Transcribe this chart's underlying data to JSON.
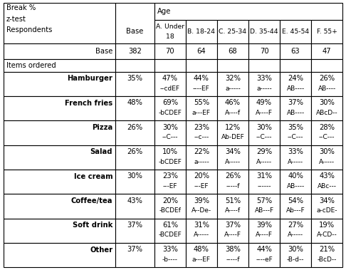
{
  "header_top_left": [
    "Break %",
    "z-test",
    "Respondents"
  ],
  "header_age_label": "Age",
  "col_headers": [
    "Base",
    "A. Under\n18",
    "B. 18-24",
    "C. 25-34",
    "D. 35-44",
    "E. 45-54",
    "F. 55+"
  ],
  "base_row_label": "Base",
  "base_row_vals": [
    "382",
    "70",
    "64",
    "68",
    "70",
    "63",
    "47"
  ],
  "section_label": "Items ordered",
  "rows": [
    {
      "label": "Hamburger",
      "values": [
        "35%",
        "47%",
        "44%",
        "32%",
        "33%",
        "24%",
        "26%"
      ],
      "ztest": [
        "",
        "--cdEF",
        "----EF",
        "a-----",
        "a-----",
        "AB----",
        "AB----"
      ]
    },
    {
      "label": "French fries",
      "values": [
        "48%",
        "69%",
        "55%",
        "46%",
        "49%",
        "37%",
        "30%"
      ],
      "ztest": [
        "",
        "-bCDEF",
        "a---EF",
        "A----f",
        "A----F",
        "AB----",
        "ABcD--"
      ]
    },
    {
      "label": "Pizza",
      "values": [
        "26%",
        "30%",
        "23%",
        "12%",
        "30%",
        "35%",
        "28%"
      ],
      "ztest": [
        "",
        "--C---",
        "--c---",
        "Ab-DEF",
        "--C---",
        "--C---",
        "--C---"
      ]
    },
    {
      "label": "Salad",
      "values": [
        "26%",
        "10%",
        "22%",
        "34%",
        "29%",
        "33%",
        "30%"
      ],
      "ztest": [
        "",
        "-bCDEF",
        "a-----",
        "A-----",
        "A-----",
        "A-----",
        "A-----"
      ]
    },
    {
      "label": "Ice cream",
      "values": [
        "30%",
        "23%",
        "20%",
        "26%",
        "31%",
        "40%",
        "43%"
      ],
      "ztest": [
        "",
        "---EF",
        "---EF",
        "-----f",
        "------",
        "AB----",
        "ABc---"
      ]
    },
    {
      "label": "Coffee/tea",
      "values": [
        "43%",
        "20%",
        "39%",
        "51%",
        "57%",
        "54%",
        "34%"
      ],
      "ztest": [
        "",
        "-BCDEf",
        "A--De-",
        "A----f",
        "AB---F",
        "Ab---F",
        "a-cDE-"
      ]
    },
    {
      "label": "Soft drink",
      "values": [
        "37%",
        "61%",
        "31%",
        "37%",
        "39%",
        "27%",
        "19%"
      ],
      "ztest": [
        "",
        "-BCDEF",
        "A-----",
        "A----F",
        "A----F",
        "A-----",
        "A-CD--"
      ]
    },
    {
      "label": "Other",
      "values": [
        "37%",
        "33%",
        "48%",
        "38%",
        "44%",
        "30%",
        "21%"
      ],
      "ztest": [
        "",
        "-b----",
        "a---EF",
        "-----f",
        "----eF",
        "-B-d--",
        "-BcD--"
      ]
    }
  ],
  "bg_color": "#ffffff",
  "border_color": "#000000",
  "text_color": "#000000",
  "font_size": 7.2,
  "small_font_size": 6.5
}
